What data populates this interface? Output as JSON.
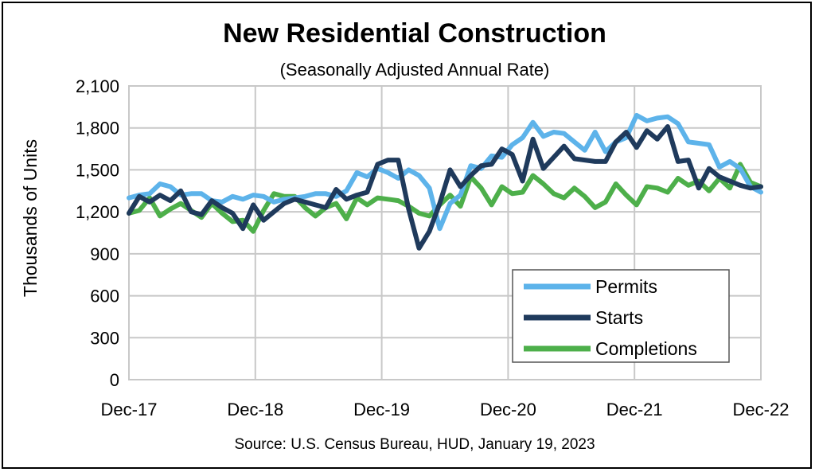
{
  "chart_data": {
    "type": "line",
    "title": "New Residential Construction",
    "subtitle": "(Seasonally Adjusted Annual Rate)",
    "ylabel": "Thousands of Units",
    "xlabel": "",
    "source": "Source:  U.S. Census Bureau, HUD, January 19, 2023",
    "ylim": [
      0,
      2100
    ],
    "yticks": [
      0,
      300,
      600,
      900,
      1200,
      1500,
      1800,
      2100
    ],
    "ytick_labels": [
      "0",
      "300",
      "600",
      "900",
      "1,200",
      "1,500",
      "1,800",
      "2,100"
    ],
    "x_tick_labels": [
      "Dec-17",
      "Dec-18",
      "Dec-19",
      "Dec-20",
      "Dec-21",
      "Dec-22"
    ],
    "x_start": "Dec-17",
    "x_end": "Dec-22",
    "grid": true,
    "legend_position": "bottom-right",
    "series": [
      {
        "name": "Permits",
        "color": "#5DB3EA",
        "values": [
          1300,
          1320,
          1330,
          1400,
          1380,
          1320,
          1330,
          1330,
          1280,
          1270,
          1310,
          1290,
          1320,
          1310,
          1270,
          1290,
          1300,
          1310,
          1330,
          1330,
          1310,
          1350,
          1480,
          1450,
          1510,
          1480,
          1440,
          1500,
          1460,
          1370,
          1080,
          1260,
          1320,
          1530,
          1510,
          1600,
          1590,
          1680,
          1730,
          1840,
          1740,
          1770,
          1760,
          1700,
          1640,
          1770,
          1630,
          1700,
          1730,
          1890,
          1850,
          1870,
          1880,
          1830,
          1700,
          1690,
          1680,
          1520,
          1560,
          1510,
          1380,
          1340
        ]
      },
      {
        "name": "Starts",
        "color": "#1F3A5C",
        "values": [
          1190,
          1310,
          1270,
          1320,
          1280,
          1350,
          1200,
          1180,
          1280,
          1230,
          1190,
          1080,
          1250,
          1140,
          1200,
          1260,
          1290,
          1270,
          1250,
          1230,
          1360,
          1290,
          1320,
          1340,
          1540,
          1570,
          1570,
          1220,
          940,
          1060,
          1260,
          1500,
          1380,
          1460,
          1530,
          1540,
          1650,
          1610,
          1420,
          1720,
          1510,
          1590,
          1670,
          1580,
          1570,
          1560,
          1560,
          1700,
          1770,
          1660,
          1780,
          1720,
          1810,
          1560,
          1570,
          1370,
          1510,
          1450,
          1420,
          1390,
          1370,
          1380
        ]
      },
      {
        "name": "Completions",
        "color": "#4DAF4A",
        "values": [
          1190,
          1210,
          1300,
          1170,
          1220,
          1260,
          1210,
          1160,
          1260,
          1190,
          1130,
          1140,
          1060,
          1210,
          1330,
          1310,
          1310,
          1230,
          1170,
          1230,
          1260,
          1150,
          1300,
          1250,
          1300,
          1290,
          1280,
          1240,
          1190,
          1170,
          1250,
          1320,
          1240,
          1450,
          1370,
          1250,
          1380,
          1330,
          1340,
          1460,
          1400,
          1330,
          1300,
          1370,
          1310,
          1230,
          1270,
          1400,
          1320,
          1250,
          1380,
          1370,
          1340,
          1440,
          1390,
          1420,
          1350,
          1440,
          1370,
          1540,
          1410,
          1380
        ]
      }
    ]
  }
}
